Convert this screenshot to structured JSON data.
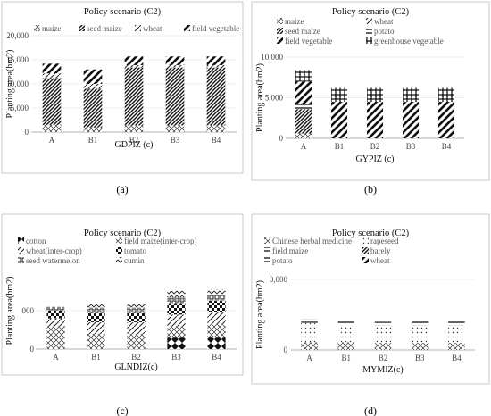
{
  "chart_data": [
    {
      "type": "bar",
      "stacked": true,
      "title": "Policy scenario (C2)",
      "xlabel": "GDPIZ (c)",
      "ylabel": "Planting area(hm2)",
      "caption": "(a)",
      "ylim": [
        0,
        20000
      ],
      "yticks": [
        "0",
        "5,000",
        "10,000",
        "15,000",
        "20,000"
      ],
      "ytick_values": [
        0,
        5000,
        10000,
        15000,
        20000
      ],
      "categories": [
        "A",
        "B1",
        "B2",
        "B3",
        "B4"
      ],
      "legend_columns": 4,
      "series": [
        {
          "name": "maize",
          "pattern": "xsmall",
          "values": [
            1500,
            1000,
            1400,
            1400,
            1400
          ]
        },
        {
          "name": "seed maize",
          "pattern": "dense",
          "values": [
            9700,
            8000,
            12000,
            12000,
            12000
          ]
        },
        {
          "name": "wheat",
          "pattern": "slash",
          "values": [
            1000,
            1000,
            500,
            500,
            500
          ]
        },
        {
          "name": "field vegetable",
          "pattern": "thick",
          "values": [
            2000,
            3000,
            1800,
            1800,
            1800
          ]
        }
      ]
    },
    {
      "type": "bar",
      "stacked": true,
      "title": "Policy scenario (C2)",
      "xlabel": "GYPIZ (c)",
      "ylabel": "Planting area(hm2)",
      "caption": "(b)",
      "ylim": [
        0,
        10000
      ],
      "yticks": [
        "0",
        "5,000",
        "10,000"
      ],
      "ytick_values": [
        0,
        5000,
        10000
      ],
      "categories": [
        "A",
        "B1",
        "B2",
        "B3",
        "B4"
      ],
      "legend_columns": 2,
      "series": [
        {
          "name": "maize",
          "pattern": "xsmall",
          "values": [
            600,
            0,
            0,
            0,
            0
          ]
        },
        {
          "name": "wheat",
          "pattern": "slash",
          "values": [
            0,
            0,
            0,
            0,
            0
          ]
        },
        {
          "name": "seed maize",
          "pattern": "dense",
          "values": [
            3000,
            0,
            0,
            0,
            0
          ]
        },
        {
          "name": "potato",
          "pattern": "horiz",
          "values": [
            600,
            0,
            0,
            0,
            0
          ]
        },
        {
          "name": "field vegetable",
          "pattern": "thick",
          "values": [
            2800,
            4500,
            4500,
            4500,
            4500
          ]
        },
        {
          "name": "greenhouse vegetable",
          "pattern": "grid",
          "values": [
            1400,
            1700,
            1700,
            1700,
            1700
          ]
        }
      ]
    },
    {
      "type": "bar",
      "stacked": true,
      "title": "Policy scenario (C2)",
      "xlabel": "GLNDIZ(c)",
      "ylabel": "Planting area(hm2)",
      "caption": "(c)",
      "ylim": [
        0,
        1000
      ],
      "yticks": [
        "0",
        "000"
      ],
      "ytick_values": [
        0,
        500
      ],
      "categories": [
        "A",
        "B1",
        "B2",
        "B3",
        "B4"
      ],
      "legend_columns": 2,
      "series": [
        {
          "name": "cotton",
          "pattern": "diamond",
          "values": [
            0,
            0,
            0,
            150,
            150
          ]
        },
        {
          "name": "field maize(inter-crop)",
          "pattern": "xsmall",
          "values": [
            300,
            200,
            200,
            150,
            180
          ]
        },
        {
          "name": "wheat(inter-crop)",
          "pattern": "slash",
          "values": [
            100,
            150,
            150,
            150,
            150
          ]
        },
        {
          "name": "tomato",
          "pattern": "checker",
          "values": [
            100,
            120,
            120,
            150,
            150
          ]
        },
        {
          "name": "seed watermelon",
          "pattern": "box",
          "values": [
            50,
            70,
            70,
            70,
            70
          ]
        },
        {
          "name": "cumin",
          "pattern": "chevron",
          "values": [
            0,
            50,
            50,
            90,
            80
          ]
        }
      ]
    },
    {
      "type": "bar",
      "stacked": true,
      "title": "Policy scenario (C2)",
      "xlabel": "MYMIZ(c)",
      "ylabel": "Planting area(hm2)",
      "caption": "(d)",
      "ylim": [
        0,
        20000
      ],
      "yticks": [
        "0",
        "0,000"
      ],
      "ytick_values": [
        0,
        20000
      ],
      "categories": [
        "A",
        "B1",
        "B2",
        "B3",
        "B4"
      ],
      "legend_columns": 2,
      "series": [
        {
          "name": "Chinese herbal medicine",
          "pattern": "xsmall",
          "values": [
            2200,
            2200,
            2000,
            2000,
            2000
          ]
        },
        {
          "name": "rapeseed",
          "pattern": "dots",
          "values": [
            5500,
            5000,
            5000,
            5000,
            5000
          ]
        },
        {
          "name": "field maize",
          "pattern": "horiz",
          "values": [
            1000,
            1000,
            1000,
            1200,
            1200
          ]
        },
        {
          "name": "barely",
          "pattern": "dense",
          "values": [
            0,
            0,
            0,
            0,
            0
          ]
        },
        {
          "name": "potato",
          "pattern": "horiz",
          "values": [
            0,
            0,
            0,
            0,
            0
          ]
        },
        {
          "name": "wheat",
          "pattern": "thick",
          "values": [
            0,
            0,
            0,
            0,
            0
          ]
        }
      ]
    }
  ]
}
